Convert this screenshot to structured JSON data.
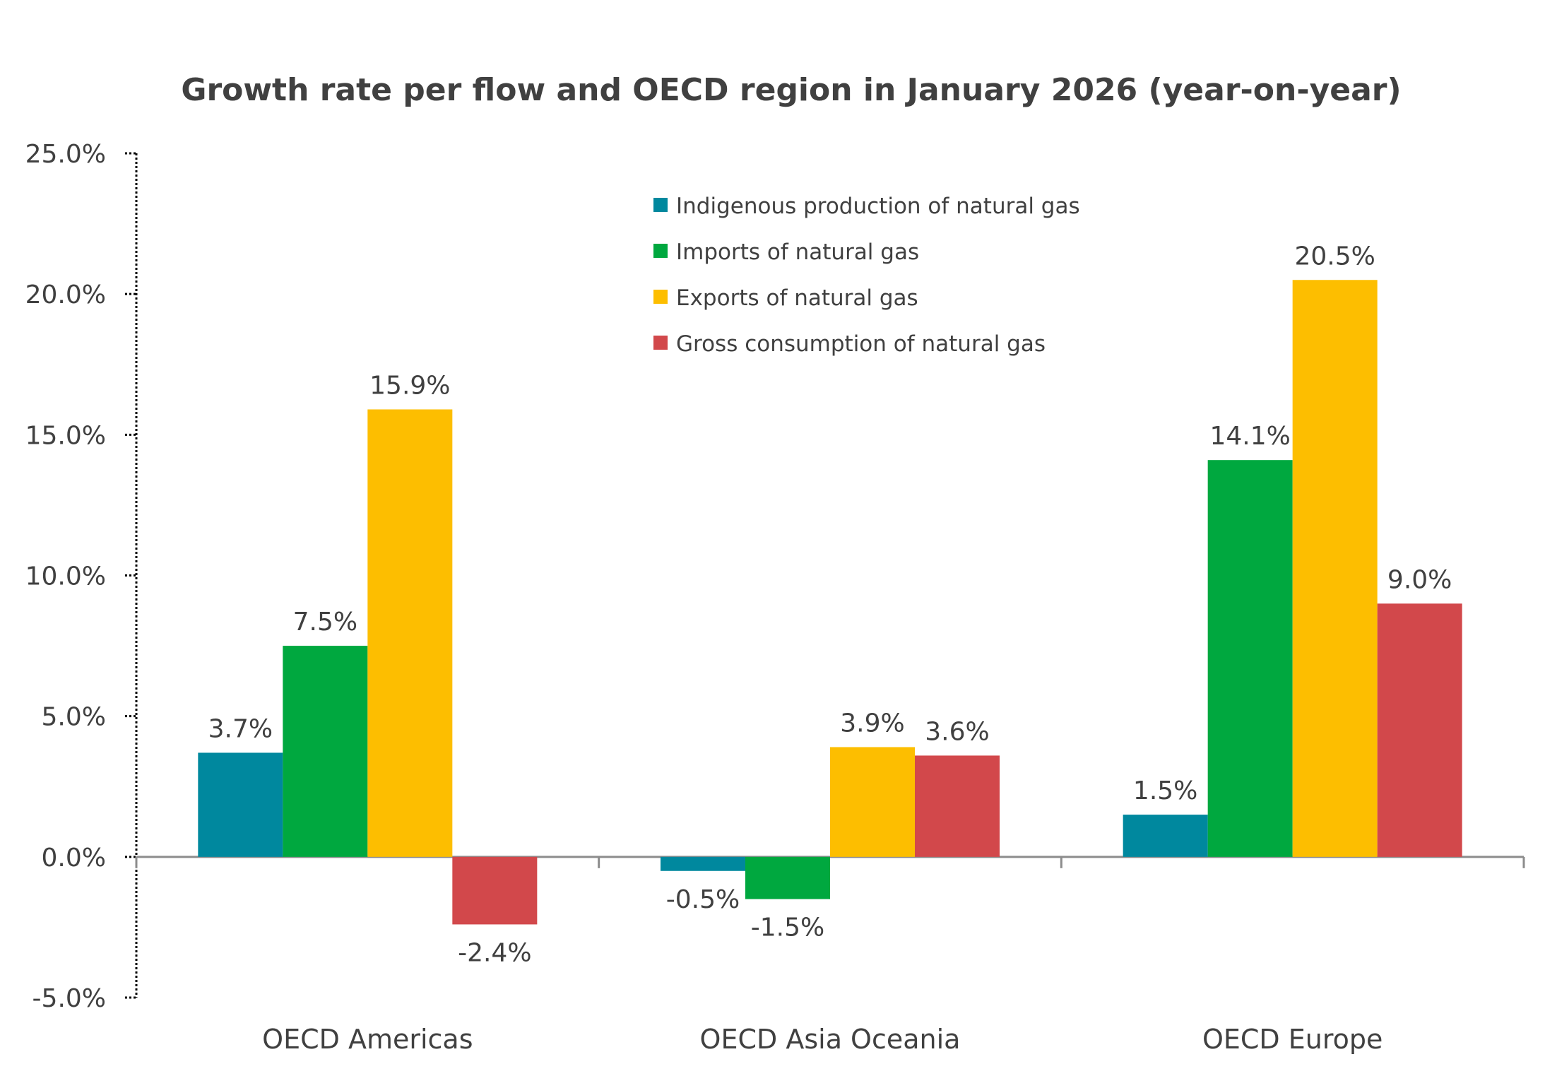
{
  "chart_data": {
    "type": "bar",
    "title": "Growth rate per flow and OECD region in January 2026 (year-on-year)",
    "xlabel": "",
    "ylabel": "",
    "categories": [
      "OECD Americas",
      "OECD Asia Oceania",
      "OECD Europe"
    ],
    "series": [
      {
        "name": "Indigenous production of natural gas",
        "color": "#00889E",
        "values": [
          3.7,
          -0.5,
          1.5
        ],
        "labels": [
          "3.7%",
          "-0.5%",
          "1.5%"
        ]
      },
      {
        "name": "Imports of natural gas",
        "color": "#00A83F",
        "values": [
          7.5,
          -1.5,
          14.1
        ],
        "labels": [
          "7.5%",
          "-1.5%",
          "14.1%"
        ]
      },
      {
        "name": "Exports of natural gas",
        "color": "#FDBE00",
        "values": [
          15.9,
          3.9,
          20.5
        ],
        "labels": [
          "15.9%",
          "3.9%",
          "20.5%"
        ]
      },
      {
        "name": "Gross consumption of natural gas",
        "color": "#D2484B",
        "values": [
          -2.4,
          3.6,
          9.0
        ],
        "labels": [
          "-2.4%",
          "3.6%",
          "9.0%"
        ]
      }
    ],
    "ylim": [
      -5,
      25
    ],
    "yticks": [
      25,
      20,
      15,
      10,
      5,
      0,
      -5
    ],
    "ytick_labels": [
      "25.0%",
      "20.0%",
      "15.0%",
      "10.0%",
      "5.0%",
      "0.0%",
      "-5.0%"
    ],
    "grid": false,
    "legend_position": "top-center",
    "unit": "%"
  },
  "colors": {
    "text": "#404040",
    "axis": "#8C8C8C",
    "y_axis_dotted": "#000000"
  }
}
